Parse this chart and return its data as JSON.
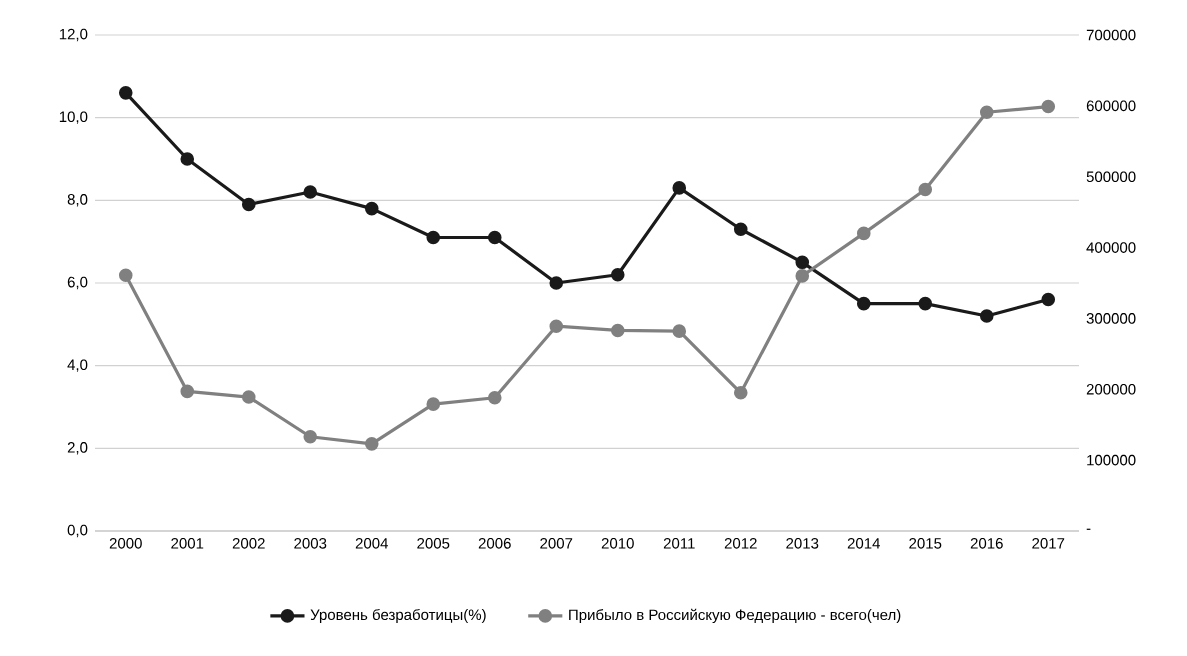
{
  "chart_data": {
    "type": "line",
    "categories": [
      "2000",
      "2001",
      "2002",
      "2003",
      "2004",
      "2005",
      "2006",
      "2007",
      "2010",
      "2011",
      "2012",
      "2013",
      "2014",
      "2015",
      "2016",
      "2017"
    ],
    "series": [
      {
        "name": "Уровень безработицы(%)",
        "color": "#1a1a1a",
        "values": [
          10.6,
          9.0,
          7.9,
          8.2,
          7.8,
          7.1,
          7.1,
          6.0,
          6.2,
          8.3,
          7.3,
          6.5,
          5.5,
          5.5,
          5.2,
          5.6
        ]
      },
      {
        "name": "Прибыло в Российскую Федерацию - всего(чел)",
        "color": "#808080",
        "axis": "y2",
        "values": [
          361000,
          197000,
          189000,
          133000,
          123000,
          179000,
          188000,
          289000,
          283000,
          282000,
          195000,
          360000,
          420000,
          482000,
          591000,
          599000
        ]
      }
    ],
    "ylim": [
      0,
      12
    ],
    "yticks": [
      {
        "value": 0,
        "label": "0,0"
      },
      {
        "value": 2,
        "label": "2,0"
      },
      {
        "value": 4,
        "label": "4,0"
      },
      {
        "value": 6,
        "label": "6,0"
      },
      {
        "value": 8,
        "label": "8,0"
      },
      {
        "value": 10,
        "label": "10,0"
      },
      {
        "value": 12,
        "label": "12,0"
      }
    ],
    "y2lim": [
      0,
      700000
    ],
    "y2ticks": [
      {
        "value": 0,
        "label": "-"
      },
      100000,
      200000,
      300000,
      400000,
      500000,
      600000,
      700000
    ],
    "grid": "y",
    "legend": "bottom",
    "marker": "circle",
    "line_style": "solid"
  }
}
